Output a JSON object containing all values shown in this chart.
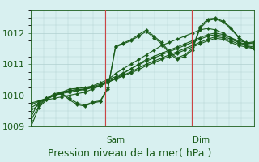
{
  "title": "Pression niveau de la mer( hPa )",
  "background_color": "#d8f0f0",
  "grid_color": "#b0d0d0",
  "plot_bg": "#d8f0f0",
  "line_color": "#1a5c1a",
  "ylim": [
    1009.0,
    1012.7
  ],
  "yticks": [
    1009,
    1010,
    1011,
    1012
  ],
  "vlines": [
    0.333,
    0.72
  ],
  "vline_labels": [
    "Sam",
    "Dim"
  ],
  "series": [
    [
      1009.3,
      1009.8,
      1009.85,
      1009.9,
      1009.95,
      1010.0,
      1010.05,
      1010.1,
      1010.2,
      1010.3,
      1010.5,
      1010.7,
      1010.85,
      1011.0,
      1011.15,
      1011.3,
      1011.45,
      1011.6,
      1011.7,
      1011.8,
      1011.9,
      1012.0,
      1012.1,
      1012.15,
      1012.1,
      1012.0,
      1011.85,
      1011.7,
      1011.6,
      1011.5
    ],
    [
      1009.5,
      1009.7,
      1009.9,
      1010.05,
      1010.1,
      1010.15,
      1010.18,
      1010.2,
      1010.25,
      1010.3,
      1010.4,
      1010.55,
      1010.7,
      1010.85,
      1011.0,
      1011.15,
      1011.25,
      1011.35,
      1011.45,
      1011.55,
      1011.65,
      1011.75,
      1011.85,
      1011.95,
      1012.0,
      1011.95,
      1011.85,
      1011.75,
      1011.7,
      1011.65
    ],
    [
      1009.6,
      1009.75,
      1009.9,
      1010.0,
      1010.1,
      1010.2,
      1010.22,
      1010.25,
      1010.3,
      1010.4,
      1010.5,
      1010.6,
      1010.72,
      1010.85,
      1010.98,
      1011.1,
      1011.2,
      1011.3,
      1011.4,
      1011.5,
      1011.6,
      1011.7,
      1011.8,
      1011.9,
      1011.95,
      1011.9,
      1011.8,
      1011.7,
      1011.65,
      1011.6
    ],
    [
      1009.7,
      1009.8,
      1009.9,
      1010.0,
      1010.08,
      1010.15,
      1010.18,
      1010.2,
      1010.28,
      1010.35,
      1010.45,
      1010.55,
      1010.65,
      1010.75,
      1010.88,
      1011.0,
      1011.1,
      1011.2,
      1011.3,
      1011.4,
      1011.5,
      1011.6,
      1011.7,
      1011.8,
      1011.88,
      1011.85,
      1011.75,
      1011.65,
      1011.6,
      1011.55
    ],
    [
      1009.75,
      1009.82,
      1009.9,
      1010.0,
      1010.06,
      1010.1,
      1010.15,
      1010.18,
      1010.25,
      1010.32,
      1010.42,
      1010.52,
      1010.62,
      1010.72,
      1010.82,
      1010.95,
      1011.05,
      1011.15,
      1011.25,
      1011.35,
      1011.45,
      1011.55,
      1011.65,
      1011.75,
      1011.83,
      1011.8,
      1011.7,
      1011.6,
      1011.55,
      1011.5
    ],
    [
      1009.0,
      1009.6,
      1009.85,
      1010.0,
      1010.05,
      1009.85,
      1009.7,
      1009.65,
      1009.75,
      1009.8,
      1010.2,
      1011.55,
      1011.65,
      1011.75,
      1011.9,
      1012.05,
      1011.85,
      1011.65,
      1011.35,
      1011.15,
      1011.25,
      1011.45,
      1012.15,
      1012.4,
      1012.45,
      1012.35,
      1012.15,
      1011.85,
      1011.65,
      1011.7
    ],
    [
      1009.2,
      1009.65,
      1009.88,
      1010.02,
      1010.06,
      1009.9,
      1009.75,
      1009.68,
      1009.78,
      1009.82,
      1010.25,
      1011.58,
      1011.68,
      1011.78,
      1011.95,
      1012.1,
      1011.9,
      1011.7,
      1011.4,
      1011.2,
      1011.3,
      1011.5,
      1012.2,
      1012.45,
      1012.48,
      1012.38,
      1012.18,
      1011.88,
      1011.68,
      1011.72
    ]
  ],
  "n_points": 30,
  "xlabel_fontsize": 9,
  "tick_fontsize": 8
}
